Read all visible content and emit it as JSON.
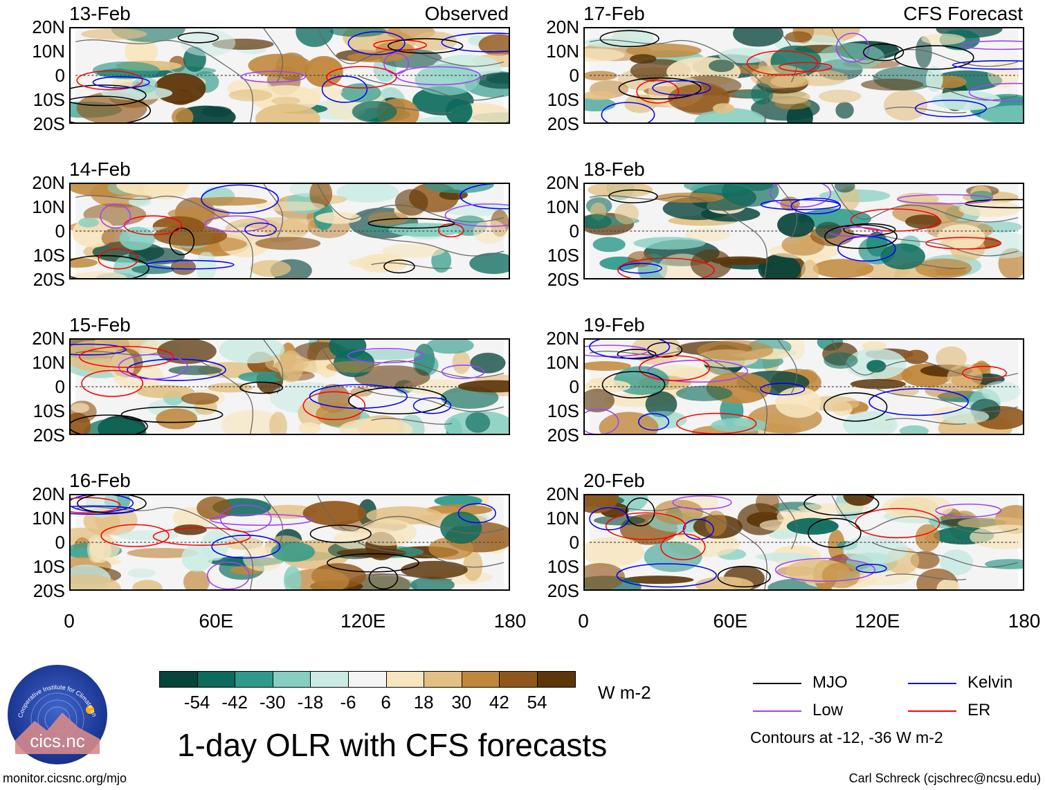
{
  "panels": [
    {
      "date": "13-Feb",
      "corner": "Observed",
      "column": "left",
      "row": 0
    },
    {
      "date": "14-Feb",
      "corner": "",
      "column": "left",
      "row": 1
    },
    {
      "date": "15-Feb",
      "corner": "",
      "column": "left",
      "row": 2
    },
    {
      "date": "16-Feb",
      "corner": "",
      "column": "left",
      "row": 3
    },
    {
      "date": "17-Feb",
      "corner": "CFS Forecast",
      "column": "right",
      "row": 0
    },
    {
      "date": "18-Feb",
      "corner": "",
      "column": "right",
      "row": 1
    },
    {
      "date": "19-Feb",
      "corner": "",
      "column": "right",
      "row": 2
    },
    {
      "date": "20-Feb",
      "corner": "",
      "column": "right",
      "row": 3
    }
  ],
  "axes": {
    "y_ticks": [
      "20N",
      "10N",
      "0",
      "10S",
      "20S"
    ],
    "x_ticks": [
      "0",
      "60E",
      "120E",
      "180"
    ]
  },
  "colorbar": {
    "colors": [
      "#07443b",
      "#0c6b5c",
      "#2f9a8b",
      "#86cfc0",
      "#c9ebe3",
      "#f4f4f4",
      "#f7e5bd",
      "#e2c083",
      "#c0873b",
      "#91571a",
      "#5c3509"
    ],
    "ticks": [
      "-54",
      "-42",
      "-30",
      "-18",
      "-6",
      "6",
      "18",
      "30",
      "42",
      "54"
    ],
    "units": "W m-2"
  },
  "title": "1-day OLR with CFS forecasts",
  "legend": {
    "items": [
      {
        "label": "MJO",
        "color": "#000000"
      },
      {
        "label": "Kelvin",
        "color": "#0000ff"
      },
      {
        "label": "Low",
        "color": "#a040ff"
      },
      {
        "label": "ER",
        "color": "#ff0000"
      }
    ],
    "note": "Contours at -12, -36 W m-2"
  },
  "logo": {
    "name": "cics.nc",
    "arc": "Cooperative Institute for Climate and Satellites"
  },
  "footer": {
    "url": "monitor.cicsnc.org/mjo",
    "credit": "Carl Schreck (cjschrec@ncsu.edu)"
  }
}
